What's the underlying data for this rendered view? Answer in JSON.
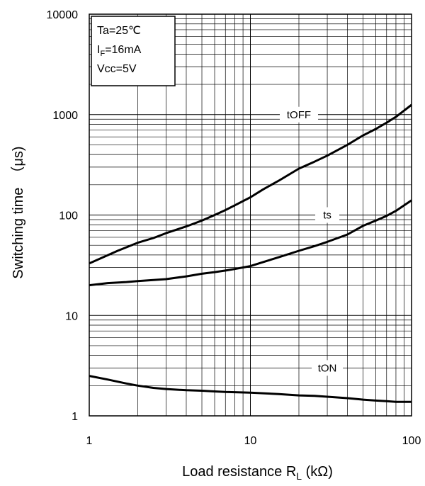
{
  "chart_data": {
    "type": "line",
    "x_scale": "log",
    "y_scale": "log",
    "xlim": [
      1,
      100
    ],
    "ylim": [
      1,
      10000
    ],
    "grid": true,
    "xlabel": {
      "main": "Load resistance  R",
      "sub": "L",
      "unit": " (kΩ)"
    },
    "ylabel": "Switching time　（μs)",
    "x_ticks": [
      {
        "value": 1,
        "label": "1"
      },
      {
        "value": 10,
        "label": "10"
      },
      {
        "value": 100,
        "label": "100"
      }
    ],
    "y_ticks": [
      {
        "value": 1,
        "label": "1"
      },
      {
        "value": 10,
        "label": "10"
      },
      {
        "value": 100,
        "label": "100"
      },
      {
        "value": 1000,
        "label": "1000"
      },
      {
        "value": 10000,
        "label": "10000"
      }
    ],
    "conditions": [
      {
        "main": "Ta=25℃",
        "sub": ""
      },
      {
        "main": "I",
        "sub": "F",
        "rest": "=16mA"
      },
      {
        "main": "Vcc=5V",
        "sub": ""
      }
    ],
    "series": [
      {
        "name": "tOFF",
        "label_at": [
          20,
          1000
        ],
        "points": [
          [
            1,
            33
          ],
          [
            1.5,
            44
          ],
          [
            2,
            53
          ],
          [
            2.5,
            59
          ],
          [
            3,
            66
          ],
          [
            4,
            77
          ],
          [
            5,
            88
          ],
          [
            6,
            100
          ],
          [
            7,
            112
          ],
          [
            8,
            125
          ],
          [
            10,
            150
          ],
          [
            12,
            180
          ],
          [
            15,
            220
          ],
          [
            20,
            290
          ],
          [
            25,
            340
          ],
          [
            30,
            390
          ],
          [
            40,
            500
          ],
          [
            50,
            620
          ],
          [
            60,
            720
          ],
          [
            70,
            830
          ],
          [
            80,
            950
          ],
          [
            100,
            1250
          ]
        ]
      },
      {
        "name": "ts",
        "label_at": [
          30,
          100
        ],
        "points": [
          [
            1,
            20
          ],
          [
            1.3,
            21
          ],
          [
            1.7,
            21.5
          ],
          [
            2,
            22
          ],
          [
            2.5,
            22.5
          ],
          [
            3,
            23
          ],
          [
            4,
            24.5
          ],
          [
            5,
            26
          ],
          [
            6,
            27
          ],
          [
            7,
            28
          ],
          [
            8,
            29
          ],
          [
            10,
            31
          ],
          [
            12,
            34
          ],
          [
            15,
            38
          ],
          [
            20,
            44
          ],
          [
            25,
            49
          ],
          [
            30,
            54
          ],
          [
            40,
            64
          ],
          [
            50,
            78
          ],
          [
            60,
            88
          ],
          [
            70,
            98
          ],
          [
            80,
            110
          ],
          [
            100,
            140
          ]
        ]
      },
      {
        "name": "tON",
        "label_at": [
          30,
          3
        ],
        "points": [
          [
            1,
            2.5
          ],
          [
            1.3,
            2.3
          ],
          [
            1.7,
            2.1
          ],
          [
            2,
            2.0
          ],
          [
            2.5,
            1.9
          ],
          [
            3,
            1.85
          ],
          [
            4,
            1.8
          ],
          [
            5,
            1.78
          ],
          [
            6,
            1.75
          ],
          [
            7,
            1.73
          ],
          [
            8,
            1.72
          ],
          [
            10,
            1.7
          ],
          [
            12,
            1.68
          ],
          [
            15,
            1.65
          ],
          [
            20,
            1.6
          ],
          [
            25,
            1.58
          ],
          [
            30,
            1.55
          ],
          [
            40,
            1.5
          ],
          [
            50,
            1.45
          ],
          [
            60,
            1.42
          ],
          [
            70,
            1.4
          ],
          [
            80,
            1.38
          ],
          [
            100,
            1.38
          ]
        ]
      }
    ],
    "colors": {
      "line": "#000000",
      "grid": "#000000",
      "background": "#ffffff"
    }
  }
}
